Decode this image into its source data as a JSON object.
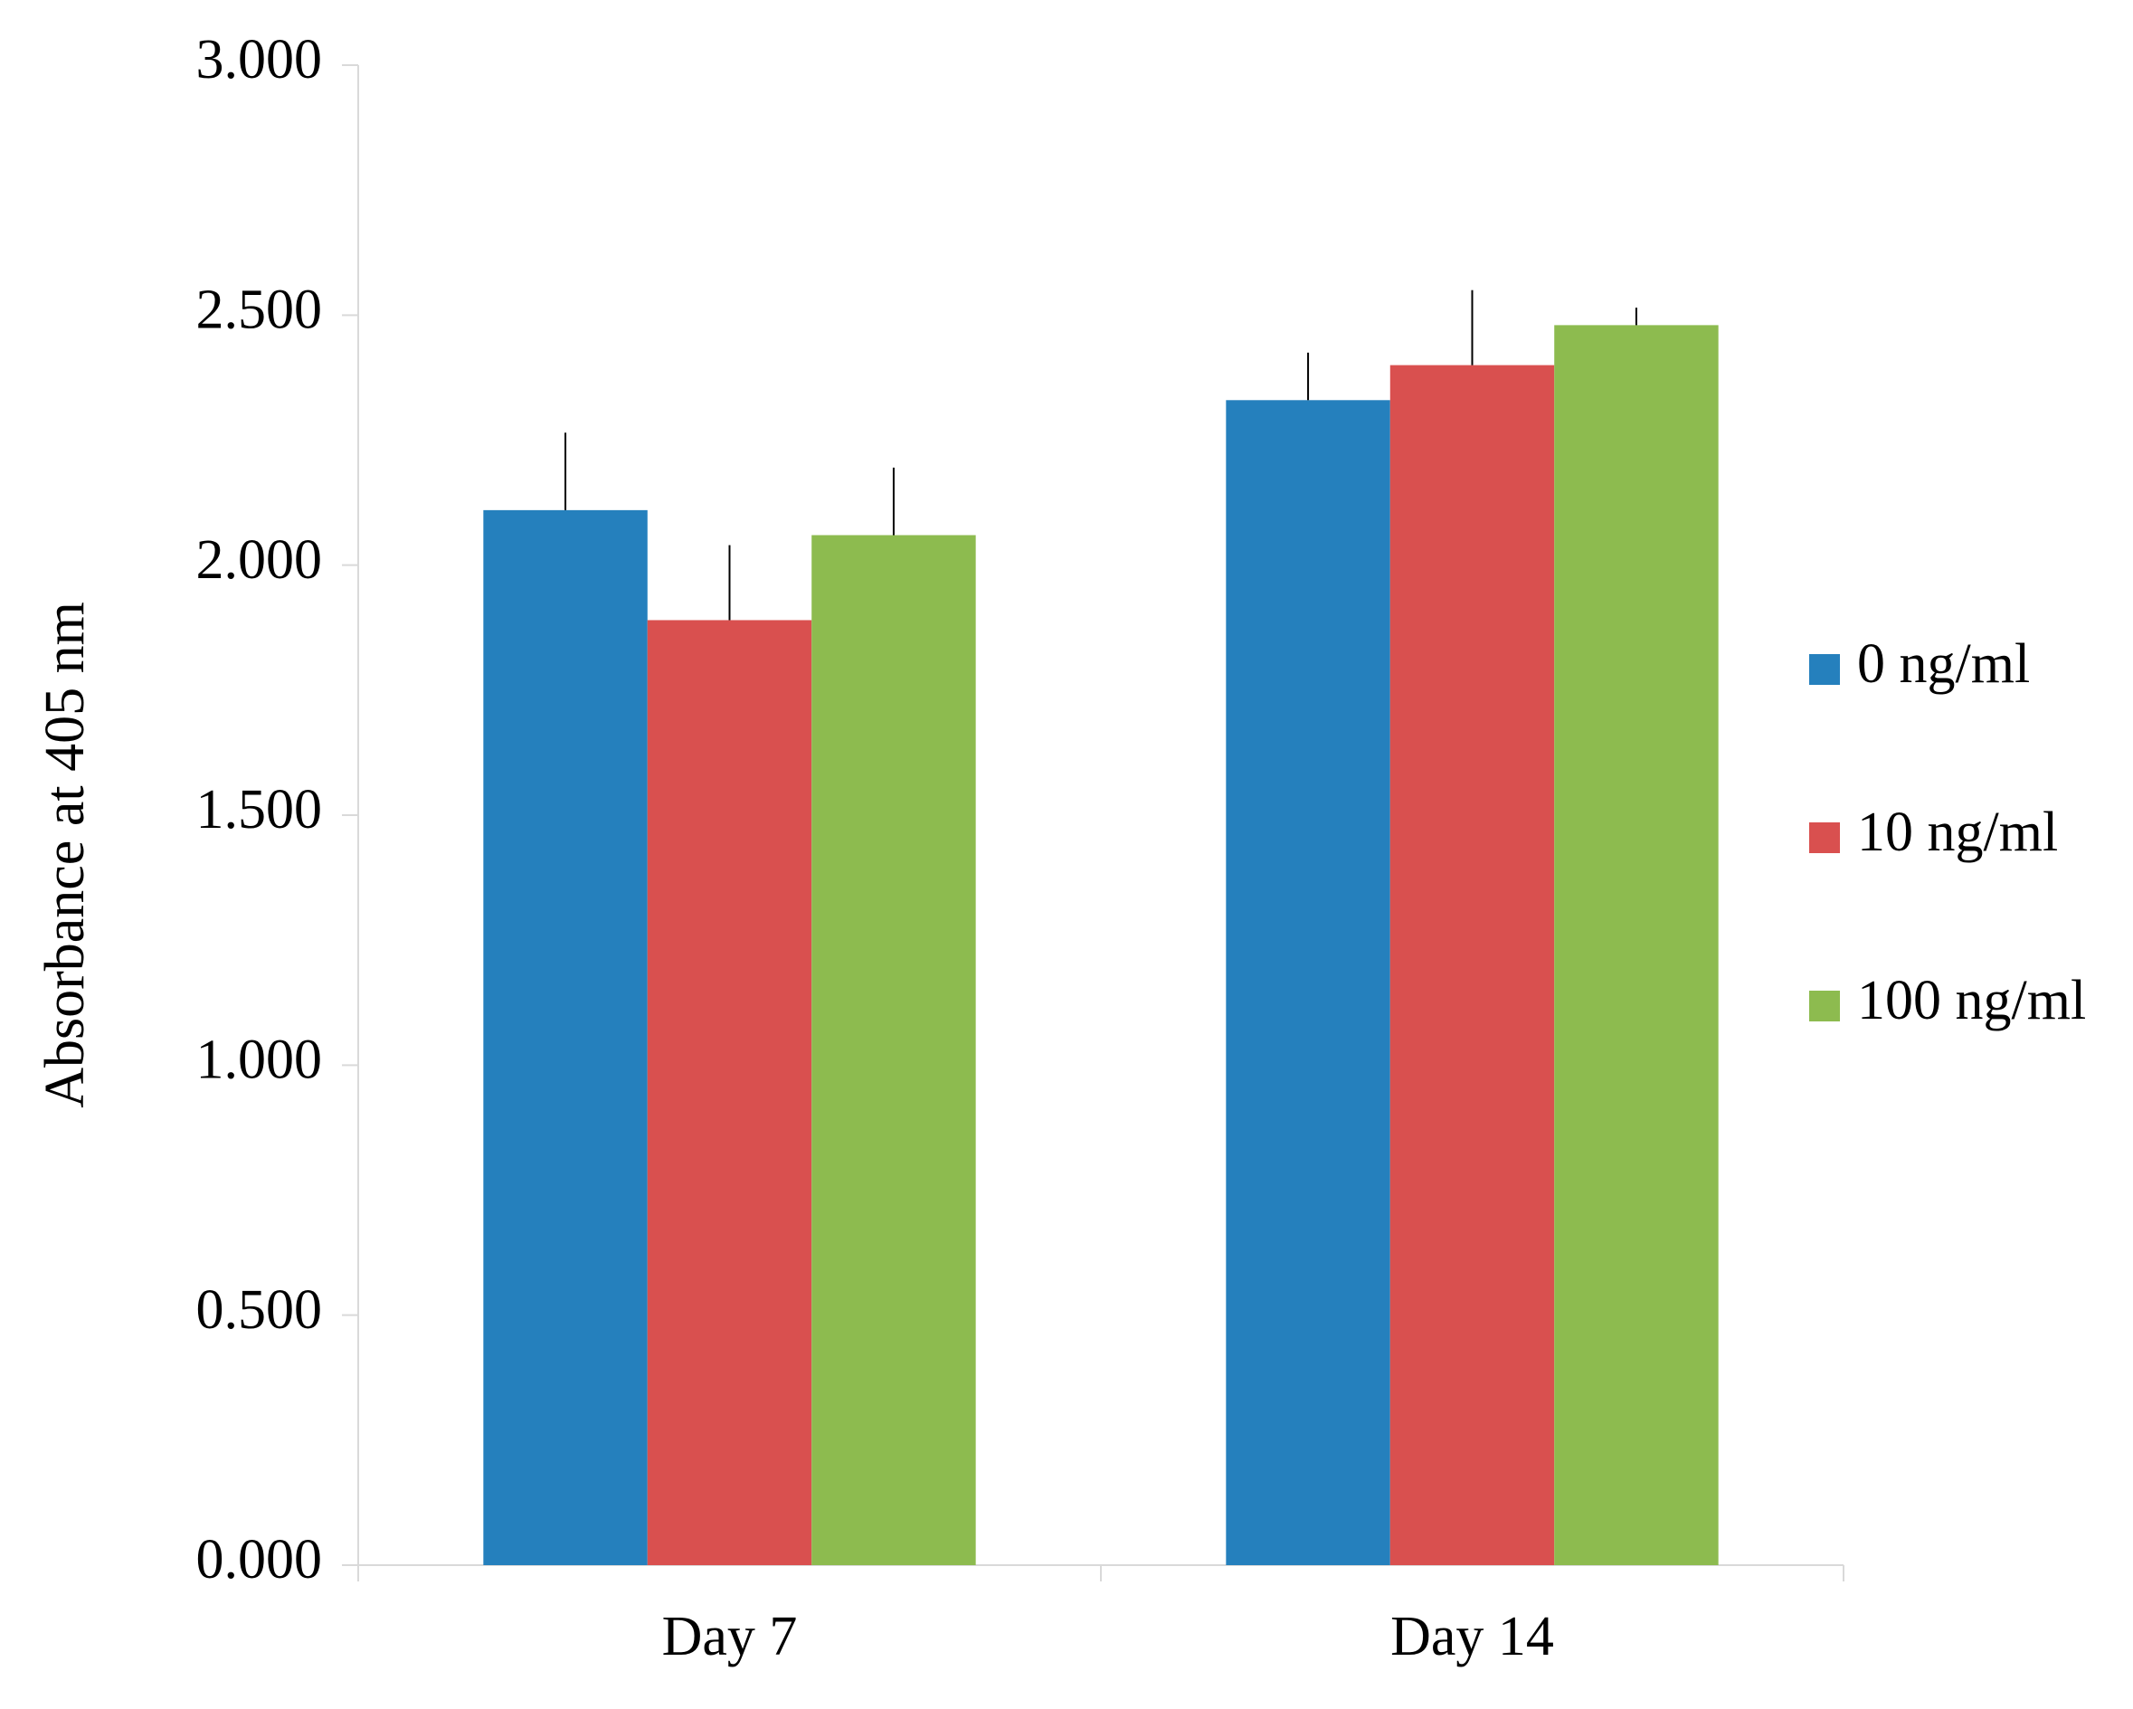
{
  "chart_data": {
    "type": "bar",
    "y_label": "Absorbance at 405 nm",
    "categories": [
      "Day 7",
      "Day 14"
    ],
    "series": [
      {
        "name": "0 ng/ml",
        "color": "#2580bd",
        "values": [
          2.11,
          2.33
        ],
        "errors": [
          0.155,
          0.095
        ]
      },
      {
        "name": "10 ng/ml",
        "color": "#d9504f",
        "values": [
          1.89,
          2.4
        ],
        "errors": [
          0.15,
          0.15
        ]
      },
      {
        "name": "100 ng/ml",
        "color": "#8dbb4f",
        "values": [
          2.06,
          2.48
        ],
        "errors": [
          0.135,
          0.035
        ]
      }
    ],
    "ylim": [
      0,
      3
    ],
    "yticks": [
      {
        "value": 0,
        "label": "0.000"
      },
      {
        "value": 0.5,
        "label": "0.500"
      },
      {
        "value": 1,
        "label": "1.000"
      },
      {
        "value": 1.5,
        "label": "1.500"
      },
      {
        "value": 2,
        "label": "2.000"
      },
      {
        "value": 2.5,
        "label": "2.500"
      },
      {
        "value": 3,
        "label": "3.000"
      }
    ],
    "grid": false,
    "legend": "right"
  }
}
